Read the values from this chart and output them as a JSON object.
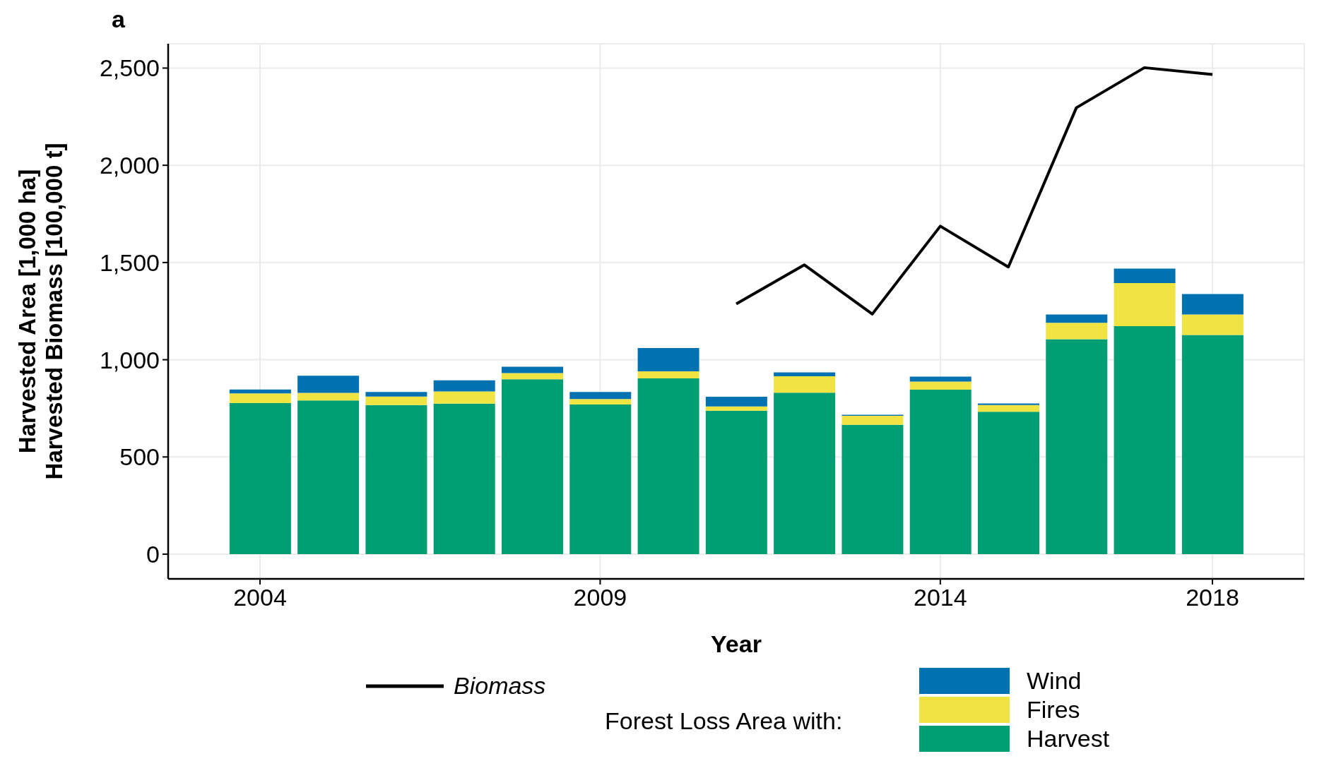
{
  "chart_data": {
    "type": "bar",
    "title": "a",
    "xlabel": "Year",
    "ylabel": "Harvested Area [1,000 ha]\nHarvested Biomass [100,000 t]",
    "legend_title": "Forest Loss Area with:",
    "x": [
      2004,
      2005,
      2006,
      2007,
      2008,
      2009,
      2010,
      2011,
      2012,
      2013,
      2014,
      2015,
      2016,
      2017,
      2018
    ],
    "series": [
      {
        "name": "Harvest",
        "color": "#009e73",
        "values": [
          777,
          791,
          767,
          774,
          900,
          770,
          904,
          738,
          831,
          665,
          846,
          733,
          1106,
          1173,
          1127
        ]
      },
      {
        "name": "Fires",
        "color": "#f0e442",
        "values": [
          50,
          39,
          44,
          63,
          31,
          28,
          36,
          22,
          84,
          47,
          42,
          34,
          84,
          221,
          106
        ]
      },
      {
        "name": "Wind",
        "color": "#0072b2",
        "values": [
          20,
          88,
          23,
          57,
          33,
          36,
          120,
          50,
          20,
          5,
          25,
          8,
          43,
          75,
          105
        ]
      },
      {
        "name": "Biomass",
        "type": "line",
        "color": "#000000",
        "values": [
          null,
          null,
          null,
          null,
          null,
          null,
          null,
          1287,
          1488,
          1235,
          1687,
          1477,
          2296,
          2502,
          2467
        ]
      }
    ],
    "stacked": true,
    "xlim": [
      2002.65,
      2019.35
    ],
    "xticks": [
      2004,
      2009,
      2014,
      2018
    ],
    "ylim": [
      -127,
      2625
    ],
    "yticks": [
      0,
      500,
      {
        "value": 1000,
        "label": "1,000"
      },
      {
        "value": 1500,
        "label": "1,500"
      },
      {
        "value": 2000,
        "label": "2,000"
      },
      {
        "value": 2500,
        "label": "2,500"
      }
    ],
    "grid": true,
    "legend": "bottom",
    "marker": "none",
    "line_style": "solid"
  }
}
